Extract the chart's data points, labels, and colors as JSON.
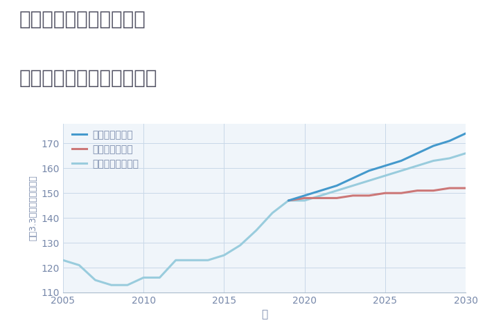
{
  "title_line1": "埼玉県川口市南鳩ヶ谷の",
  "title_line2": "中古マンションの価格推移",
  "xlabel": "年",
  "ylabel": "坪（3.3㎡）単価（万円）",
  "ylim": [
    110,
    178
  ],
  "xlim": [
    2005,
    2030
  ],
  "yticks": [
    110,
    120,
    130,
    140,
    150,
    160,
    170
  ],
  "xticks": [
    2005,
    2010,
    2015,
    2020,
    2025,
    2030
  ],
  "bg_color": "#f0f5fa",
  "grid_color": "#c8d8e8",
  "scenarios": {
    "good": {
      "label": "グッドシナリオ",
      "color": "#4499cc",
      "linewidth": 2.2,
      "years": [
        2019,
        2020,
        2021,
        2022,
        2023,
        2024,
        2025,
        2026,
        2027,
        2028,
        2029,
        2030
      ],
      "values": [
        147,
        149,
        151,
        153,
        156,
        159,
        161,
        163,
        166,
        169,
        171,
        174
      ]
    },
    "bad": {
      "label": "バッドシナリオ",
      "color": "#cc7777",
      "linewidth": 2.2,
      "years": [
        2019,
        2020,
        2021,
        2022,
        2023,
        2024,
        2025,
        2026,
        2027,
        2028,
        2029,
        2030
      ],
      "values": [
        147,
        148,
        148,
        148,
        149,
        149,
        150,
        150,
        151,
        151,
        152,
        152
      ]
    },
    "normal": {
      "label": "ノーマルシナリオ",
      "color": "#99ccdd",
      "linewidth": 2.2,
      "years": [
        2005,
        2006,
        2007,
        2008,
        2009,
        2010,
        2011,
        2012,
        2013,
        2014,
        2015,
        2016,
        2017,
        2018,
        2019,
        2020,
        2021,
        2022,
        2023,
        2024,
        2025,
        2026,
        2027,
        2028,
        2029,
        2030
      ],
      "values": [
        123,
        121,
        115,
        113,
        113,
        116,
        116,
        123,
        123,
        123,
        125,
        129,
        135,
        142,
        147,
        147,
        149,
        151,
        153,
        155,
        157,
        159,
        161,
        163,
        164,
        166
      ]
    }
  },
  "title_color": "#555566",
  "title_fontsize": 20,
  "tick_color": "#7788aa",
  "tick_fontsize": 10,
  "label_color": "#7788aa",
  "label_fontsize": 11,
  "legend_fontsize": 10
}
